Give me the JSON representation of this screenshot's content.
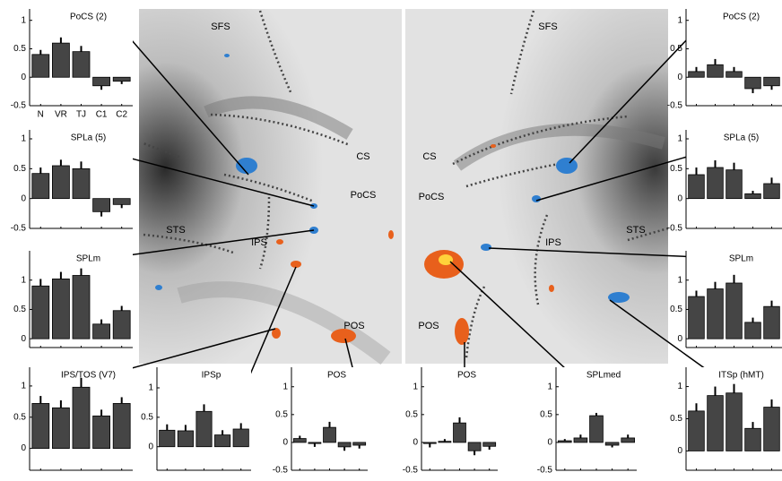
{
  "chart_data": [
    {
      "type": "bar",
      "title": "PoCS (2)",
      "categories": [
        "N",
        "VR",
        "TJ",
        "C1",
        "C2"
      ],
      "values": [
        0.4,
        0.6,
        0.45,
        -0.15,
        -0.07
      ],
      "errors": [
        0.08,
        0.1,
        0.1,
        0.07,
        0.05
      ],
      "color": "#454545",
      "ylim": [
        -0.5,
        1.2
      ],
      "yticks": [
        -0.5,
        0,
        0.5,
        1
      ]
    },
    {
      "type": "bar",
      "title": "SPLa (5)",
      "categories": [
        null,
        null,
        null,
        null,
        null
      ],
      "values": [
        0.42,
        0.55,
        0.5,
        -0.22,
        -0.1
      ],
      "errors": [
        0.1,
        0.1,
        0.12,
        0.08,
        0.06
      ],
      "color": "#454545",
      "ylim": [
        -0.5,
        1.15
      ],
      "yticks": [
        -0.5,
        0,
        0.5,
        1
      ]
    },
    {
      "type": "bar",
      "title": "SPLm",
      "categories": [
        null,
        null,
        null,
        null,
        null
      ],
      "values": [
        0.9,
        1.02,
        1.08,
        0.25,
        0.48
      ],
      "errors": [
        0.12,
        0.12,
        0.12,
        0.08,
        0.08
      ],
      "color": "#454545",
      "ylim": [
        -0.15,
        1.5
      ],
      "yticks": [
        0,
        0.5,
        1
      ]
    },
    {
      "type": "bar",
      "title": "IPS/TOS (V7)",
      "categories": [
        null,
        null,
        null,
        null,
        null
      ],
      "values": [
        0.72,
        0.65,
        0.98,
        0.52,
        0.72
      ],
      "errors": [
        0.12,
        0.12,
        0.15,
        0.1,
        0.1
      ],
      "color": "#454545",
      "ylim": [
        -0.35,
        1.3
      ],
      "yticks": [
        0,
        0.5,
        1
      ]
    },
    {
      "type": "bar",
      "title": "IPSp",
      "categories": [
        null,
        null,
        null,
        null,
        null
      ],
      "values": [
        0.28,
        0.27,
        0.6,
        0.2,
        0.3
      ],
      "errors": [
        0.1,
        0.1,
        0.12,
        0.08,
        0.1
      ],
      "color": "#454545",
      "ylim": [
        -0.4,
        1.35
      ],
      "yticks": [
        0,
        0.5,
        1
      ]
    },
    {
      "type": "bar",
      "title": "POS",
      "categories": [
        null,
        null,
        null,
        null,
        null
      ],
      "values": [
        0.07,
        -0.02,
        0.27,
        -0.08,
        -0.05
      ],
      "errors": [
        0.05,
        0.06,
        0.1,
        0.07,
        0.06
      ],
      "color": "#454545",
      "ylim": [
        -0.5,
        1.35
      ],
      "yticks": [
        -0.5,
        0,
        0.5,
        1
      ]
    },
    {
      "type": "bar",
      "title": "POS",
      "categories": [
        null,
        null,
        null,
        null,
        null
      ],
      "values": [
        -0.02,
        0.02,
        0.35,
        -0.15,
        -0.07
      ],
      "errors": [
        0.07,
        0.04,
        0.1,
        0.08,
        0.06
      ],
      "color": "#454545",
      "ylim": [
        -0.5,
        1.35
      ],
      "yticks": [
        -0.5,
        0,
        0.5,
        1
      ]
    },
    {
      "type": "bar",
      "title": "SPLmed",
      "categories": [
        null,
        null,
        null,
        null,
        null
      ],
      "values": [
        0.03,
        0.08,
        0.48,
        -0.05,
        0.08
      ],
      "errors": [
        0.03,
        0.06,
        0.05,
        0.04,
        0.06
      ],
      "color": "#454545",
      "ylim": [
        -0.5,
        1.35
      ],
      "yticks": [
        -0.5,
        0,
        0.5,
        1
      ]
    },
    {
      "type": "bar",
      "title": "ITSp (hMT)",
      "categories": [
        null,
        null,
        null,
        null,
        null
      ],
      "values": [
        0.62,
        0.86,
        0.9,
        0.35,
        0.68
      ],
      "errors": [
        0.12,
        0.14,
        0.14,
        0.1,
        0.12
      ],
      "color": "#454545",
      "ylim": [
        -0.3,
        1.3
      ],
      "yticks": [
        0,
        0.5,
        1
      ]
    },
    {
      "type": "bar",
      "title": "PoCS (2)",
      "categories": [
        null,
        null,
        null,
        null,
        null
      ],
      "values": [
        0.1,
        0.22,
        0.1,
        -0.2,
        -0.15
      ],
      "errors": [
        0.08,
        0.1,
        0.08,
        0.08,
        0.07
      ],
      "color": "#454545",
      "ylim": [
        -0.5,
        1.2
      ],
      "yticks": [
        -0.5,
        0,
        0.5,
        1
      ]
    },
    {
      "type": "bar",
      "title": "SPLa (5)",
      "categories": [
        null,
        null,
        null,
        null,
        null
      ],
      "values": [
        0.4,
        0.52,
        0.48,
        0.08,
        0.25
      ],
      "errors": [
        0.12,
        0.12,
        0.12,
        0.05,
        0.1
      ],
      "color": "#454545",
      "ylim": [
        -0.5,
        1.15
      ],
      "yticks": [
        -0.5,
        0,
        0.5,
        1
      ]
    },
    {
      "type": "bar",
      "title": "SPLm",
      "categories": [
        null,
        null,
        null,
        null,
        null
      ],
      "values": [
        0.72,
        0.85,
        0.95,
        0.28,
        0.55
      ],
      "errors": [
        0.1,
        0.12,
        0.14,
        0.08,
        0.1
      ],
      "color": "#454545",
      "ylim": [
        -0.15,
        1.5
      ],
      "yticks": [
        0,
        0.5,
        1
      ]
    }
  ],
  "brain_labels": {
    "left": [
      "SFS",
      "CS",
      "PoCS",
      "STS",
      "IPS",
      "POS"
    ],
    "right": [
      "SFS",
      "CS",
      "PoCS",
      "IPS",
      "STS",
      "POS"
    ]
  }
}
